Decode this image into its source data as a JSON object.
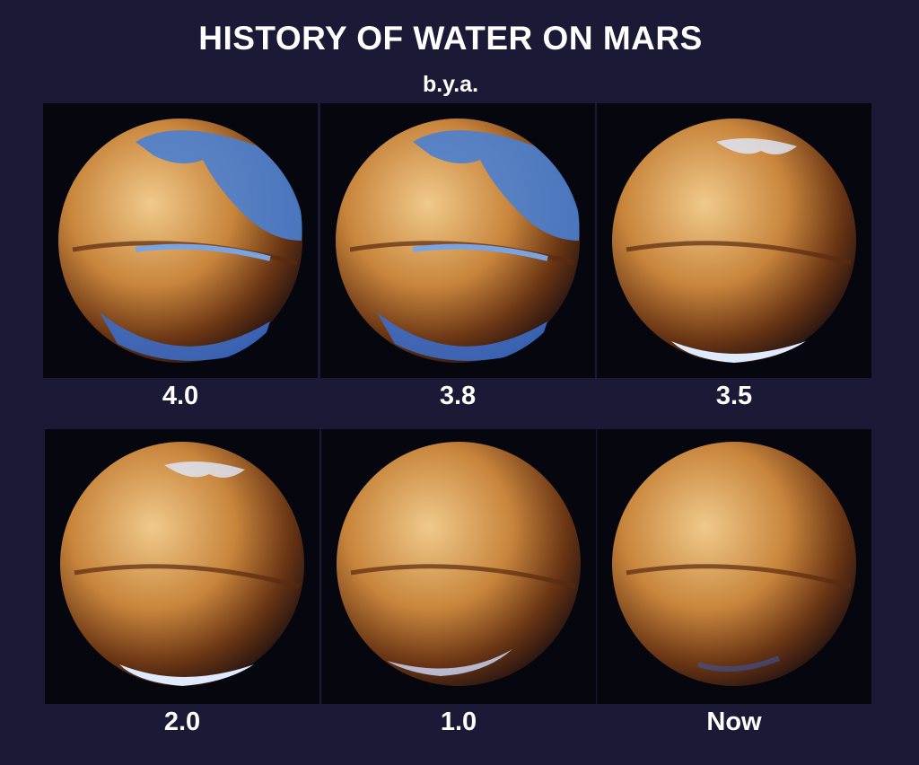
{
  "title": "HISTORY OF WATER ON MARS",
  "subtitle": "b.y.a.",
  "panels": [
    {
      "label": "4.0",
      "water": "ocean"
    },
    {
      "label": "3.8",
      "water": "ocean"
    },
    {
      "label": "3.5",
      "water": "polar-ice"
    },
    {
      "label": "2.0",
      "water": "polar-ice"
    },
    {
      "label": "1.0",
      "water": "small-ice"
    },
    {
      "label": "Now",
      "water": "minimal"
    }
  ],
  "colors": {
    "background": "#1b1a36",
    "panel": "#06060e",
    "mars": "#c8853c",
    "water": "#4a7fd0"
  }
}
